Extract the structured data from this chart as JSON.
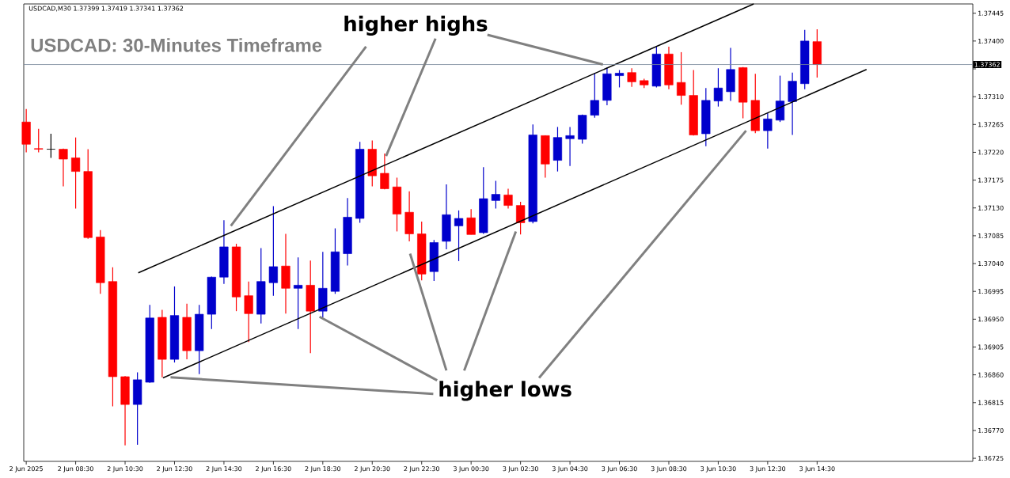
{
  "chart_data": {
    "type": "candlestick",
    "title": "USDCAD: 30-Minutes Timeframe",
    "annotations": [
      "USDCAD,M30  1.37399 1.37419 1.37341 1.37362",
      {
        "text": "higher highs",
        "x": "2025-06-03T05:50",
        "y": 1.37362
      },
      {
        "text": "higher lows",
        "x": "2025-06-02T18:22",
        "y": 1.36954
      }
    ],
    "x": [
      "2025-06-02T06:30",
      "2025-06-02T07:00",
      "2025-06-02T07:30",
      "2025-06-02T08:00",
      "2025-06-02T08:30",
      "2025-06-02T09:00",
      "2025-06-02T09:30",
      "2025-06-02T10:00",
      "2025-06-02T10:30",
      "2025-06-02T11:00",
      "2025-06-02T11:30",
      "2025-06-02T12:00",
      "2025-06-02T12:30",
      "2025-06-02T13:00",
      "2025-06-02T13:30",
      "2025-06-02T14:00",
      "2025-06-02T14:30",
      "2025-06-02T15:00",
      "2025-06-02T15:30",
      "2025-06-02T16:00",
      "2025-06-02T16:30",
      "2025-06-02T17:00",
      "2025-06-02T17:30",
      "2025-06-02T18:00",
      "2025-06-02T18:30",
      "2025-06-02T19:00",
      "2025-06-02T19:30",
      "2025-06-02T20:00",
      "2025-06-02T20:30",
      "2025-06-02T21:00",
      "2025-06-02T21:30",
      "2025-06-02T22:00",
      "2025-06-02T22:30",
      "2025-06-02T23:00",
      "2025-06-02T23:30",
      "2025-06-03T00:00",
      "2025-06-03T00:30",
      "2025-06-03T01:00",
      "2025-06-03T01:30",
      "2025-06-03T02:00",
      "2025-06-03T02:30",
      "2025-06-03T03:00",
      "2025-06-03T03:30",
      "2025-06-03T04:00",
      "2025-06-03T04:30",
      "2025-06-03T05:00",
      "2025-06-03T05:30",
      "2025-06-03T06:00",
      "2025-06-03T06:30",
      "2025-06-03T07:00",
      "2025-06-03T07:30",
      "2025-06-03T08:00",
      "2025-06-03T08:30",
      "2025-06-03T09:00",
      "2025-06-03T09:30",
      "2025-06-03T10:00",
      "2025-06-03T10:30",
      "2025-06-03T11:00",
      "2025-06-03T11:30",
      "2025-06-03T12:00",
      "2025-06-03T12:30",
      "2025-06-03T13:00",
      "2025-06-03T13:30",
      "2025-06-03T14:00",
      "2025-06-03T14:30"
    ],
    "ohlc": [
      [
        1.37269,
        1.3729,
        1.3722,
        1.37233
      ],
      [
        1.37226,
        1.37258,
        1.3722,
        1.37225
      ],
      [
        1.37225,
        1.3725,
        1.37211,
        1.37225
      ],
      [
        1.37225,
        1.37226,
        1.37165,
        1.37209
      ],
      [
        1.37211,
        1.37244,
        1.37129,
        1.37189
      ],
      [
        1.37189,
        1.37225,
        1.3708,
        1.37082
      ],
      [
        1.37083,
        1.37094,
        1.36991,
        1.37009
      ],
      [
        1.37011,
        1.37034,
        1.36809,
        1.36857
      ],
      [
        1.36857,
        1.36858,
        1.36746,
        1.36812
      ],
      [
        1.36812,
        1.36864,
        1.36747,
        1.36852
      ],
      [
        1.36848,
        1.36973,
        1.36847,
        1.36952
      ],
      [
        1.36953,
        1.36965,
        1.36856,
        1.36885
      ],
      [
        1.36885,
        1.37003,
        1.3688,
        1.36956
      ],
      [
        1.36953,
        1.36975,
        1.36885,
        1.36899
      ],
      [
        1.36899,
        1.36973,
        1.36861,
        1.36958
      ],
      [
        1.36958,
        1.37019,
        1.36934,
        1.37018
      ],
      [
        1.37018,
        1.3711,
        1.37007,
        1.37067
      ],
      [
        1.37067,
        1.37072,
        1.36963,
        1.36986
      ],
      [
        1.36988,
        1.37011,
        1.36913,
        1.36959
      ],
      [
        1.36958,
        1.37065,
        1.36943,
        1.37011
      ],
      [
        1.37009,
        1.37133,
        1.36988,
        1.37035
      ],
      [
        1.37036,
        1.37088,
        1.36959,
        1.37
      ],
      [
        1.37,
        1.3705,
        1.36934,
        1.37005
      ],
      [
        1.37005,
        1.37045,
        1.36895,
        1.36963
      ],
      [
        1.36963,
        1.37059,
        1.36953,
        1.37
      ],
      [
        1.36995,
        1.37097,
        1.36991,
        1.37059
      ],
      [
        1.37056,
        1.37146,
        1.37037,
        1.37115
      ],
      [
        1.37113,
        1.37237,
        1.37106,
        1.37225
      ],
      [
        1.37225,
        1.37239,
        1.37165,
        1.37182
      ],
      [
        1.37186,
        1.37218,
        1.3716,
        1.37161
      ],
      [
        1.37164,
        1.37179,
        1.37092,
        1.3712
      ],
      [
        1.37123,
        1.37157,
        1.37076,
        1.37088
      ],
      [
        1.37088,
        1.37108,
        1.37013,
        1.37023
      ],
      [
        1.37027,
        1.37078,
        1.37012,
        1.37074
      ],
      [
        1.37076,
        1.37168,
        1.37063,
        1.37119
      ],
      [
        1.37101,
        1.37126,
        1.37044,
        1.37113
      ],
      [
        1.37114,
        1.37128,
        1.37087,
        1.37087
      ],
      [
        1.3709,
        1.37196,
        1.37088,
        1.37145
      ],
      [
        1.37142,
        1.37174,
        1.37129,
        1.37152
      ],
      [
        1.37151,
        1.37161,
        1.37129,
        1.37134
      ],
      [
        1.37134,
        1.3714,
        1.37087,
        1.37106
      ],
      [
        1.37108,
        1.37265,
        1.37105,
        1.37248
      ],
      [
        1.37247,
        1.37247,
        1.37179,
        1.37201
      ],
      [
        1.37207,
        1.37261,
        1.37189,
        1.37244
      ],
      [
        1.37242,
        1.37261,
        1.37198,
        1.37247
      ],
      [
        1.37241,
        1.37281,
        1.37234,
        1.3728
      ],
      [
        1.3728,
        1.37348,
        1.37276,
        1.37304
      ],
      [
        1.37304,
        1.37357,
        1.37296,
        1.37347
      ],
      [
        1.37344,
        1.37353,
        1.37325,
        1.37348
      ],
      [
        1.37349,
        1.37356,
        1.37326,
        1.37334
      ],
      [
        1.37336,
        1.37339,
        1.37324,
        1.37329
      ],
      [
        1.37327,
        1.37391,
        1.37325,
        1.37379
      ],
      [
        1.37379,
        1.37391,
        1.37322,
        1.37329
      ],
      [
        1.37333,
        1.37382,
        1.37297,
        1.37312
      ],
      [
        1.37312,
        1.37353,
        1.37247,
        1.37248
      ],
      [
        1.3725,
        1.37324,
        1.3723,
        1.37304
      ],
      [
        1.37303,
        1.37356,
        1.37294,
        1.37324
      ],
      [
        1.37318,
        1.37389,
        1.37303,
        1.37354
      ],
      [
        1.37357,
        1.37358,
        1.37275,
        1.37301
      ],
      [
        1.37304,
        1.37347,
        1.37251,
        1.37255
      ],
      [
        1.37255,
        1.37284,
        1.37226,
        1.37274
      ],
      [
        1.37272,
        1.37344,
        1.37269,
        1.37303
      ],
      [
        1.37302,
        1.37349,
        1.37248,
        1.37335
      ],
      [
        1.37331,
        1.37418,
        1.37322,
        1.374
      ],
      [
        1.37399,
        1.37419,
        1.37341,
        1.37362
      ]
    ],
    "colors": [
      "#ff0000",
      "#ff0000",
      "#000000",
      "#ff0000",
      "#ff0000",
      "#ff0000",
      "#ff0000",
      "#ff0000",
      "#ff0000",
      "#0000cc",
      "#0000cc",
      "#ff0000",
      "#0000cc",
      "#ff0000",
      "#0000cc",
      "#0000cc",
      "#0000cc",
      "#ff0000",
      "#ff0000",
      "#0000cc",
      "#0000cc",
      "#ff0000",
      "#0000cc",
      "#ff0000",
      "#0000cc",
      "#0000cc",
      "#0000cc",
      "#0000cc",
      "#ff0000",
      "#ff0000",
      "#ff0000",
      "#ff0000",
      "#ff0000",
      "#0000cc",
      "#0000cc",
      "#0000cc",
      "#ff0000",
      "#0000cc",
      "#0000cc",
      "#ff0000",
      "#ff0000",
      "#0000cc",
      "#ff0000",
      "#0000cc",
      "#0000cc",
      "#0000cc",
      "#0000cc",
      "#0000cc",
      "#0000cc",
      "#ff0000",
      "#ff0000",
      "#0000cc",
      "#ff0000",
      "#ff0000",
      "#ff0000",
      "#0000cc",
      "#0000cc",
      "#0000cc",
      "#ff0000",
      "#ff0000",
      "#0000cc",
      "#0000cc",
      "#0000cc",
      "#0000cc",
      "#ff0000"
    ],
    "series": [
      {
        "type": "line",
        "color": "#000000",
        "x": [
          "2025-06-02T11:02",
          "2025-06-03T11:56"
        ],
        "values": [
          1.37025,
          1.3746
        ]
      },
      {
        "type": "line",
        "color": "#000000",
        "x": [
          "2025-06-02T12:02",
          "2025-06-03T16:30"
        ],
        "values": [
          1.36855,
          1.37354
        ]
      }
    ],
    "ref_lines": [
      {
        "axis": "y",
        "value": 1.37362,
        "label": "1.37362",
        "color": "#778899"
      }
    ],
    "xlim": [
      "2025-06-02T06:24",
      "2025-06-03T20:48"
    ],
    "xticks": [
      {
        "value": "2025-06-02T06:30",
        "label": "2 Jun 2025"
      },
      {
        "value": "2025-06-02T08:30",
        "label": "2 Jun 08:30"
      },
      {
        "value": "2025-06-02T10:30",
        "label": "2 Jun 10:30"
      },
      {
        "value": "2025-06-02T12:30",
        "label": "2 Jun 12:30"
      },
      {
        "value": "2025-06-02T14:30",
        "label": "2 Jun 14:30"
      },
      {
        "value": "2025-06-02T16:30",
        "label": "2 Jun 16:30"
      },
      {
        "value": "2025-06-02T18:30",
        "label": "2 Jun 18:30"
      },
      {
        "value": "2025-06-02T20:30",
        "label": "2 Jun 20:30"
      },
      {
        "value": "2025-06-02T22:30",
        "label": "2 Jun 22:30"
      },
      {
        "value": "2025-06-03T00:30",
        "label": "3 Jun 00:30"
      },
      {
        "value": "2025-06-03T02:30",
        "label": "3 Jun 02:30"
      },
      {
        "value": "2025-06-03T04:30",
        "label": "3 Jun 04:30"
      },
      {
        "value": "2025-06-03T06:30",
        "label": "3 Jun 06:30"
      },
      {
        "value": "2025-06-03T08:30",
        "label": "3 Jun 08:30"
      },
      {
        "value": "2025-06-03T10:30",
        "label": "3 Jun 10:30"
      },
      {
        "value": "2025-06-03T12:30",
        "label": "3 Jun 12:30"
      },
      {
        "value": "2025-06-03T14:30",
        "label": "3 Jun 14:30"
      }
    ],
    "ylim": [
      1.3672,
      1.3746
    ],
    "yticks": [
      {
        "value": 1.36725,
        "label": "1.36725"
      },
      {
        "value": 1.3677,
        "label": "1.36770"
      },
      {
        "value": 1.36815,
        "label": "1.36815"
      },
      {
        "value": 1.3686,
        "label": "1.36860"
      },
      {
        "value": 1.36905,
        "label": "1.36905"
      },
      {
        "value": 1.3695,
        "label": "1.36950"
      },
      {
        "value": 1.36995,
        "label": "1.36995"
      },
      {
        "value": 1.3704,
        "label": "1.37040"
      },
      {
        "value": 1.37085,
        "label": "1.37085"
      },
      {
        "value": 1.3713,
        "label": "1.37130"
      },
      {
        "value": 1.37175,
        "label": "1.37175"
      },
      {
        "value": 1.3722,
        "label": "1.37220"
      },
      {
        "value": 1.37265,
        "label": "1.37265"
      },
      {
        "value": 1.3731,
        "label": "1.37310"
      },
      {
        "value": 1.37355,
        "label": null
      },
      {
        "value": 1.374,
        "label": "1.37400"
      },
      {
        "value": 1.37445,
        "label": "1.37445"
      }
    ]
  }
}
